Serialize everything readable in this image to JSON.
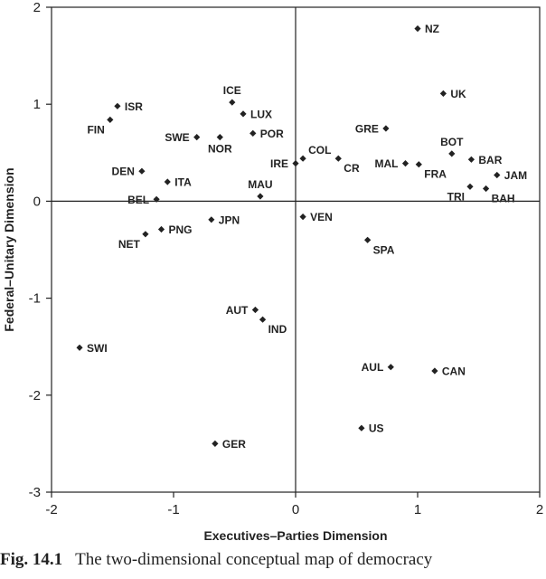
{
  "chart_data": {
    "type": "scatter",
    "title": "",
    "xlabel": "Executives–Parties Dimension",
    "ylabel": "Federal–Unitary Dimension",
    "xlim": [
      -2,
      2
    ],
    "ylim": [
      -3,
      2
    ],
    "xticks": [
      "-2",
      "-1",
      "0",
      "1",
      "2"
    ],
    "yticks": [
      "2",
      "1",
      "0",
      "-1",
      "-2",
      "-3"
    ],
    "grid": false,
    "reference_lines": {
      "x": 0,
      "y": 0
    },
    "points": [
      {
        "label": "NZ",
        "x": 1.0,
        "y": 1.78,
        "anchor": "right"
      },
      {
        "label": "UK",
        "x": 1.21,
        "y": 1.11,
        "anchor": "right"
      },
      {
        "label": "ISR",
        "x": -1.46,
        "y": 0.98,
        "anchor": "right"
      },
      {
        "label": "FIN",
        "x": -1.52,
        "y": 0.84,
        "anchor": "left-below"
      },
      {
        "label": "ICE",
        "x": -0.52,
        "y": 1.02,
        "anchor": "above"
      },
      {
        "label": "LUX",
        "x": -0.43,
        "y": 0.9,
        "anchor": "right"
      },
      {
        "label": "SWE",
        "x": -0.81,
        "y": 0.66,
        "anchor": "left"
      },
      {
        "label": "NOR",
        "x": -0.62,
        "y": 0.66,
        "anchor": "below"
      },
      {
        "label": "POR",
        "x": -0.35,
        "y": 0.7,
        "anchor": "right"
      },
      {
        "label": "GRE",
        "x": 0.74,
        "y": 0.75,
        "anchor": "left"
      },
      {
        "label": "BOT",
        "x": 1.28,
        "y": 0.49,
        "anchor": "above"
      },
      {
        "label": "COL",
        "x": 0.06,
        "y": 0.44,
        "anchor": "right-above"
      },
      {
        "label": "IRE",
        "x": 0.0,
        "y": 0.39,
        "anchor": "left"
      },
      {
        "label": "CR",
        "x": 0.35,
        "y": 0.44,
        "anchor": "right-below"
      },
      {
        "label": "MAL",
        "x": 0.9,
        "y": 0.39,
        "anchor": "left"
      },
      {
        "label": "FRA",
        "x": 1.01,
        "y": 0.38,
        "anchor": "right-below"
      },
      {
        "label": "BAR",
        "x": 1.44,
        "y": 0.43,
        "anchor": "right"
      },
      {
        "label": "JAM",
        "x": 1.65,
        "y": 0.27,
        "anchor": "right"
      },
      {
        "label": "TRI",
        "x": 1.43,
        "y": 0.15,
        "anchor": "left-below"
      },
      {
        "label": "BAH",
        "x": 1.56,
        "y": 0.13,
        "anchor": "right-below"
      },
      {
        "label": "DEN",
        "x": -1.26,
        "y": 0.31,
        "anchor": "left"
      },
      {
        "label": "ITA",
        "x": -1.05,
        "y": 0.2,
        "anchor": "right"
      },
      {
        "label": "BEL",
        "x": -1.14,
        "y": 0.02,
        "anchor": "left"
      },
      {
        "label": "MAU",
        "x": -0.29,
        "y": 0.05,
        "anchor": "above"
      },
      {
        "label": "JPN",
        "x": -0.69,
        "y": -0.19,
        "anchor": "right"
      },
      {
        "label": "PNG",
        "x": -1.1,
        "y": -0.29,
        "anchor": "right"
      },
      {
        "label": "NET",
        "x": -1.23,
        "y": -0.34,
        "anchor": "left-below"
      },
      {
        "label": "VEN",
        "x": 0.06,
        "y": -0.16,
        "anchor": "right"
      },
      {
        "label": "SPA",
        "x": 0.59,
        "y": -0.4,
        "anchor": "right-below"
      },
      {
        "label": "AUT",
        "x": -0.33,
        "y": -1.12,
        "anchor": "left"
      },
      {
        "label": "IND",
        "x": -0.27,
        "y": -1.22,
        "anchor": "right-below"
      },
      {
        "label": "SWI",
        "x": -1.77,
        "y": -1.51,
        "anchor": "right"
      },
      {
        "label": "AUL",
        "x": 0.78,
        "y": -1.71,
        "anchor": "left"
      },
      {
        "label": "CAN",
        "x": 1.14,
        "y": -1.75,
        "anchor": "right"
      },
      {
        "label": "US",
        "x": 0.54,
        "y": -2.34,
        "anchor": "right"
      },
      {
        "label": "GER",
        "x": -0.66,
        "y": -2.5,
        "anchor": "right"
      }
    ]
  },
  "caption": {
    "figure_number": "Fig. 14.1",
    "text": "The two-dimensional conceptual map of democracy"
  }
}
